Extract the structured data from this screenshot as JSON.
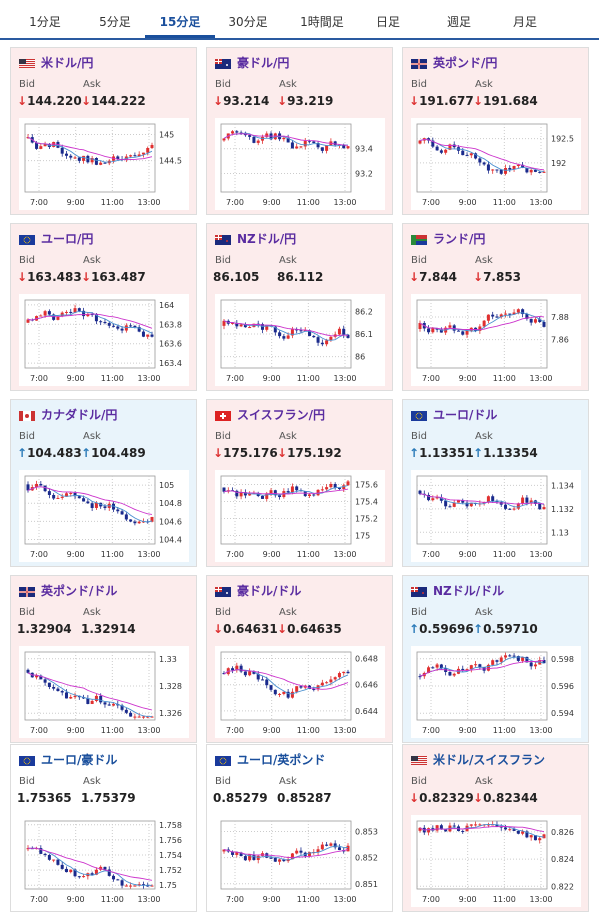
{
  "tabs": [
    "1分足",
    "5分足",
    "15分足",
    "30分足",
    "1時間足",
    "日足",
    "週足",
    "月足"
  ],
  "active_tab": "15分足",
  "labels": {
    "bid": "Bid",
    "ask": "Ask"
  },
  "x_ticks": [
    "7:00",
    "9:00",
    "11:00",
    "13:00"
  ],
  "colors": {
    "accent": "#1a4f9c",
    "down": "#d33333",
    "up": "#2a7ab8",
    "card_down": "#fcecec",
    "card_up": "#e9f4fb",
    "candle_up": "#e03030",
    "candle_down": "#1a2a8c",
    "ma_short": "#4a90d0",
    "ma_long": "#cc33cc"
  },
  "cards": [
    {
      "pair": "米ドル/円",
      "dir": "down",
      "bid": "144.220",
      "ask": "144.222",
      "bid_arrow": "↓",
      "ask_arrow": "↓",
      "flag": "us",
      "y_ticks": [
        "145",
        "144.5"
      ],
      "ylim": [
        143.9,
        145.2
      ]
    },
    {
      "pair": "豪ドル/円",
      "dir": "down",
      "bid": "93.214",
      "ask": "93.219",
      "bid_arrow": "↓",
      "ask_arrow": "↓",
      "flag": "au",
      "y_ticks": [
        "93.4",
        "93.2"
      ],
      "ylim": [
        93.05,
        93.6
      ]
    },
    {
      "pair": "英ポンド/円",
      "dir": "down",
      "bid": "191.677",
      "ask": "191.684",
      "bid_arrow": "↓",
      "ask_arrow": "↓",
      "flag": "uk",
      "y_ticks": [
        "192.5",
        "192"
      ],
      "ylim": [
        191.4,
        192.8
      ]
    },
    {
      "pair": "ユーロ/円",
      "dir": "down",
      "bid": "163.483",
      "ask": "163.487",
      "bid_arrow": "↓",
      "ask_arrow": "↓",
      "flag": "eu",
      "y_ticks": [
        "164",
        "163.8",
        "163.6",
        "163.4"
      ],
      "ylim": [
        163.35,
        164.05
      ]
    },
    {
      "pair": "NZドル/円",
      "dir": "neutral",
      "bid": "86.105",
      "ask": "86.112",
      "bid_arrow": "",
      "ask_arrow": "",
      "flag": "nz",
      "y_ticks": [
        "86.2",
        "86.1",
        "86"
      ],
      "ylim": [
        85.95,
        86.25
      ]
    },
    {
      "pair": "ランド/円",
      "dir": "down",
      "bid": "7.844",
      "ask": "7.853",
      "bid_arrow": "↓",
      "ask_arrow": "↓",
      "flag": "za",
      "y_ticks": [
        "7.88",
        "7.86"
      ],
      "ylim": [
        7.835,
        7.895
      ]
    },
    {
      "pair": "カナダドル/円",
      "dir": "up",
      "bid": "104.483",
      "ask": "104.489",
      "bid_arrow": "↑",
      "ask_arrow": "↑",
      "flag": "ca",
      "y_ticks": [
        "105",
        "104.8",
        "104.6",
        "104.4"
      ],
      "ylim": [
        104.35,
        105.1
      ]
    },
    {
      "pair": "スイスフラン/円",
      "dir": "down",
      "bid": "175.176",
      "ask": "175.192",
      "bid_arrow": "↓",
      "ask_arrow": "↓",
      "flag": "ch",
      "y_ticks": [
        "175.6",
        "175.4",
        "175.2",
        "175"
      ],
      "ylim": [
        174.9,
        175.7
      ]
    },
    {
      "pair": "ユーロ/ドル",
      "dir": "up",
      "bid": "1.13351",
      "ask": "1.13354",
      "bid_arrow": "↑",
      "ask_arrow": "↑",
      "flag": "eu",
      "y_ticks": [
        "1.134",
        "1.132",
        "1.13"
      ],
      "ylim": [
        1.129,
        1.1348
      ]
    },
    {
      "pair": "英ポンド/ドル",
      "dir": "neutral",
      "bid": "1.32904",
      "ask": "1.32914",
      "bid_arrow": "",
      "ask_arrow": "",
      "flag": "uk",
      "y_ticks": [
        "1.33",
        "1.328",
        "1.326"
      ],
      "ylim": [
        1.3255,
        1.3305
      ]
    },
    {
      "pair": "豪ドル/ドル",
      "dir": "down",
      "bid": "0.64631",
      "ask": "0.64635",
      "bid_arrow": "↓",
      "ask_arrow": "↓",
      "flag": "au",
      "y_ticks": [
        "0.648",
        "0.646",
        "0.644"
      ],
      "ylim": [
        0.6433,
        0.6485
      ]
    },
    {
      "pair": "NZドル/ドル",
      "dir": "up",
      "bid": "0.59696",
      "ask": "0.59710",
      "bid_arrow": "↑",
      "ask_arrow": "↑",
      "flag": "nz",
      "y_ticks": [
        "0.598",
        "0.596",
        "0.594"
      ],
      "ylim": [
        0.5935,
        0.5985
      ]
    },
    {
      "pair": "ユーロ/豪ドル",
      "dir": "white",
      "bid": "1.75365",
      "ask": "1.75379",
      "bid_arrow": "",
      "ask_arrow": "",
      "flag": "eu",
      "y_ticks": [
        "1.758",
        "1.756",
        "1.754",
        "1.752",
        "1.75"
      ],
      "ylim": [
        1.7495,
        1.7585
      ]
    },
    {
      "pair": "ユーロ/英ポンド",
      "dir": "white",
      "bid": "0.85279",
      "ask": "0.85287",
      "bid_arrow": "",
      "ask_arrow": "",
      "flag": "eu",
      "y_ticks": [
        "0.853",
        "0.852",
        "0.851"
      ],
      "ylim": [
        0.8508,
        0.8534
      ]
    },
    {
      "pair": "米ドル/スイスフラン",
      "dir": "down",
      "bid": "0.82329",
      "ask": "0.82344",
      "bid_arrow": "↓",
      "ask_arrow": "↓",
      "flag": "us",
      "y_ticks": [
        "0.826",
        "0.824",
        "0.822"
      ],
      "ylim": [
        0.8218,
        0.8268
      ]
    }
  ]
}
